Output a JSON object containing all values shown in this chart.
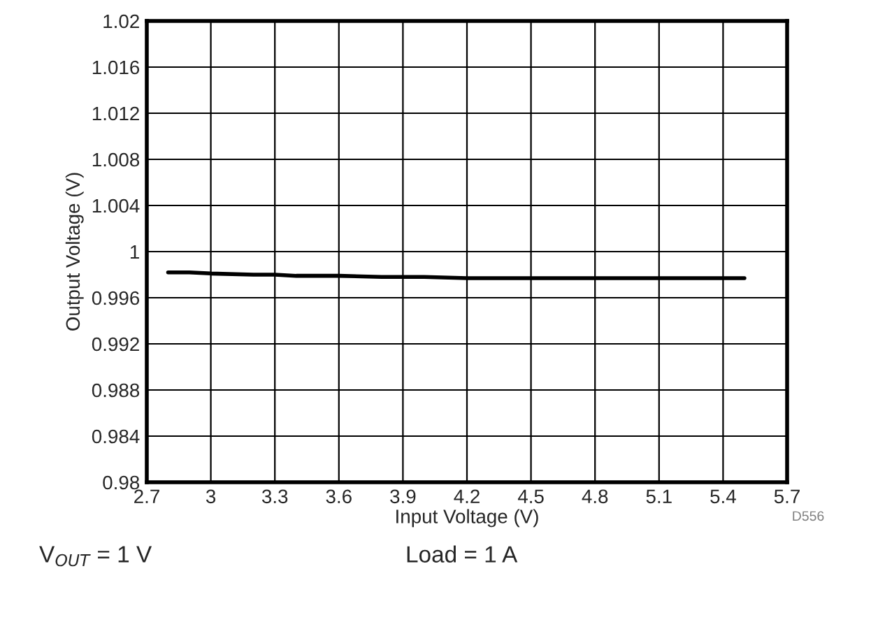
{
  "chart_data": {
    "type": "line",
    "xlabel": "Input Voltage (V)",
    "ylabel": "Output Voltage (V)",
    "x": [
      2.8,
      2.9,
      3.0,
      3.2,
      3.3,
      3.4,
      3.6,
      3.8,
      4.0,
      4.2,
      4.4,
      4.6,
      4.8,
      5.0,
      5.2,
      5.5
    ],
    "series": [
      {
        "color": "#000000",
        "values": [
          0.9982,
          0.9982,
          0.9981,
          0.998,
          0.998,
          0.9979,
          0.9979,
          0.9978,
          0.9978,
          0.9977,
          0.9977,
          0.9977,
          0.9977,
          0.9977,
          0.9977,
          0.9977
        ]
      }
    ],
    "xlim": [
      2.7,
      5.7
    ],
    "xticks": [
      2.7,
      3,
      3.3,
      3.6,
      3.9,
      4.2,
      4.5,
      4.8,
      5.1,
      5.4,
      5.7
    ],
    "ylim": [
      0.98,
      1.02
    ],
    "yticks": [
      0.98,
      0.984,
      0.988,
      0.992,
      0.996,
      1,
      1.004,
      1.008,
      1.012,
      1.016,
      1.02
    ],
    "grid": true,
    "marker": "none",
    "line_style": "solid",
    "annotations": [
      "V$_{OUT}$ = 1 V",
      "Load = 1 A",
      "D556"
    ]
  }
}
